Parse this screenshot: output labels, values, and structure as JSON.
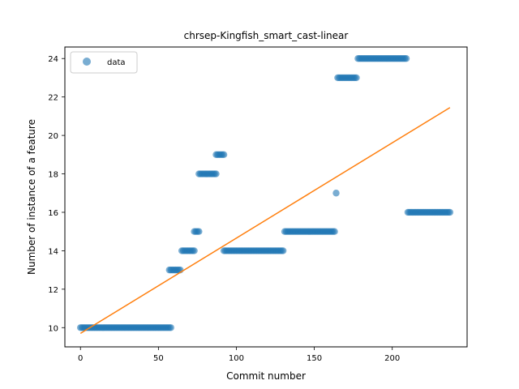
{
  "chart_data": {
    "type": "scatter",
    "title": "chrsep-Kingfish_smart_cast-linear",
    "xlabel": "Commit number",
    "ylabel": "Number of instance of a feature",
    "xlim": [
      -10,
      248
    ],
    "ylim": [
      9.0,
      24.6
    ],
    "xticks": [
      0,
      50,
      100,
      150,
      200
    ],
    "yticks": [
      10,
      12,
      14,
      16,
      18,
      20,
      22,
      24
    ],
    "grid": false,
    "legend": {
      "position": "top-left",
      "entries": [
        "data"
      ]
    },
    "colors": {
      "data": "#1f77b4",
      "fit": "#ff7f0e"
    },
    "series": [
      {
        "name": "data",
        "kind": "scatter",
        "segments": [
          {
            "x_start": 0,
            "x_end": 58,
            "y": 10
          },
          {
            "x_start": 57,
            "x_end": 64,
            "y": 13
          },
          {
            "x_start": 65,
            "x_end": 73,
            "y": 14
          },
          {
            "x_start": 73,
            "x_end": 76,
            "y": 15
          },
          {
            "x_start": 76,
            "x_end": 87,
            "y": 18
          },
          {
            "x_start": 87,
            "x_end": 92,
            "y": 19
          },
          {
            "x_start": 92,
            "x_end": 130,
            "y": 14
          },
          {
            "x_start": 131,
            "x_end": 163,
            "y": 15
          },
          {
            "x_start": 164,
            "x_end": 164,
            "y": 17
          },
          {
            "x_start": 165,
            "x_end": 177,
            "y": 23
          },
          {
            "x_start": 178,
            "x_end": 209,
            "y": 24
          },
          {
            "x_start": 210,
            "x_end": 237,
            "y": 16
          }
        ]
      },
      {
        "kind": "line",
        "x": [
          0,
          237
        ],
        "y": [
          9.7,
          21.45
        ]
      }
    ]
  }
}
